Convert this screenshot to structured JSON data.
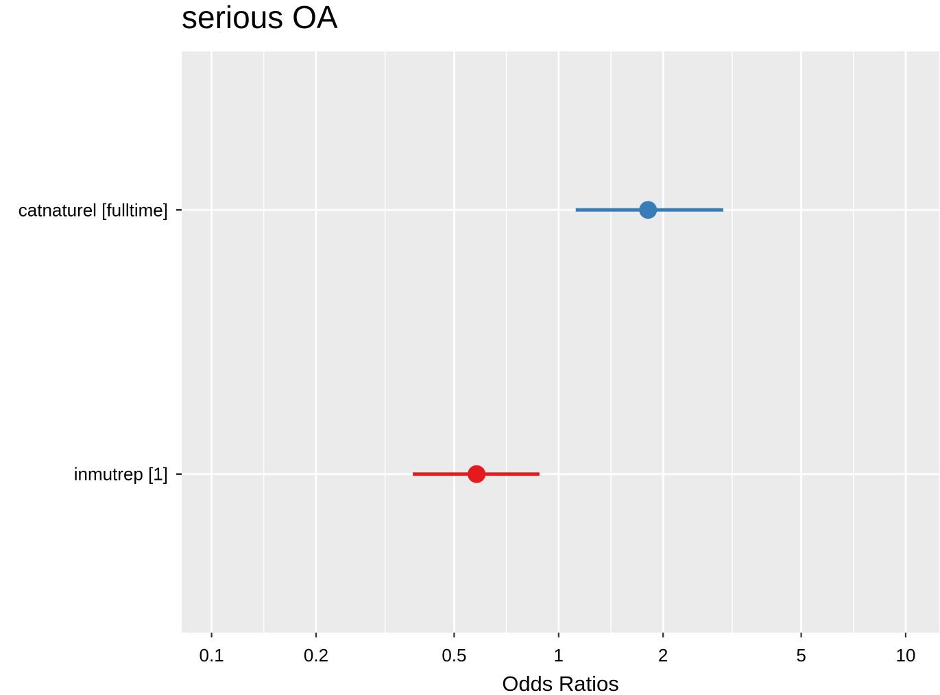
{
  "chart_data": {
    "type": "scatter",
    "title": "serious OA",
    "xlabel": "Odds Ratios",
    "ylabel": "",
    "x_scale": "log10",
    "xlim": [
      0.082,
      12.5
    ],
    "x_ticks": [
      {
        "value": 0.1,
        "label": "0.1"
      },
      {
        "value": 0.2,
        "label": "0.2"
      },
      {
        "value": 0.5,
        "label": "0.5"
      },
      {
        "value": 1,
        "label": "1"
      },
      {
        "value": 2,
        "label": "2"
      },
      {
        "value": 5,
        "label": "5"
      },
      {
        "value": 10,
        "label": "10"
      }
    ],
    "x_minor_gridlines": [
      0.1414,
      0.3162,
      0.7071,
      1.4142,
      3.1623,
      7.0711
    ],
    "grid": true,
    "panel_background": "#EBEBEB",
    "categories": [
      "catnaturel [fulltime]",
      "inmutrep [1]"
    ],
    "estimates": [
      {
        "term": "catnaturel [fulltime]",
        "or": 1.81,
        "ci_low": 1.12,
        "ci_high": 2.98,
        "color": "#377EB8"
      },
      {
        "term": "inmutrep [1]",
        "or": 0.58,
        "ci_low": 0.38,
        "ci_high": 0.88,
        "color": "#E41A1C"
      }
    ]
  }
}
